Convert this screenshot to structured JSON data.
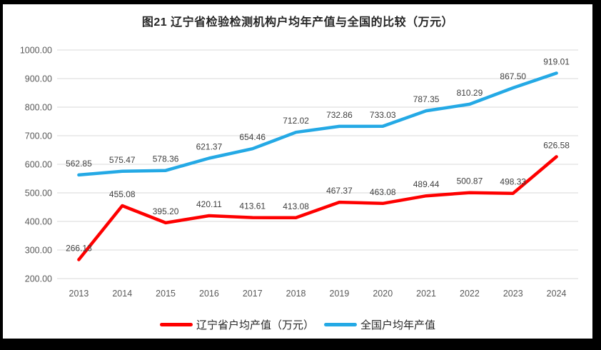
{
  "title": "图21 辽宁省检验检测机构户均年产值与全国的比较（万元）",
  "chart_data": {
    "type": "line",
    "categories": [
      "2013",
      "2014",
      "2015",
      "2016",
      "2017",
      "2018",
      "2019",
      "2020",
      "2021",
      "2022",
      "2023",
      "2024"
    ],
    "series": [
      {
        "name": "辽宁省户均产值（万元）",
        "color": "#fe0000",
        "values": [
          266.13,
          455.08,
          395.2,
          420.11,
          413.61,
          413.08,
          467.37,
          463.08,
          489.44,
          500.87,
          498.33,
          626.58
        ]
      },
      {
        "name": "全国户均年产值",
        "color": "#24a9e5",
        "values": [
          562.85,
          575.47,
          578.36,
          621.37,
          654.46,
          712.02,
          732.86,
          733.03,
          787.35,
          810.29,
          867.5,
          919.01
        ]
      }
    ],
    "title": "图21 辽宁省检验检测机构户均年产值与全国的比较（万元）",
    "xlabel": "",
    "ylabel": "",
    "ylim": [
      200,
      1000
    ],
    "ytick_step": 100,
    "value_decimals": 2,
    "grid": true,
    "legend_position": "bottom",
    "data_labels": true,
    "colors": {
      "gridline": "#d9d9d9",
      "tick_label": "#595959",
      "data_label": "#404040",
      "title": "#262626",
      "frame_border": "#000000",
      "background": "#ffffff"
    }
  }
}
